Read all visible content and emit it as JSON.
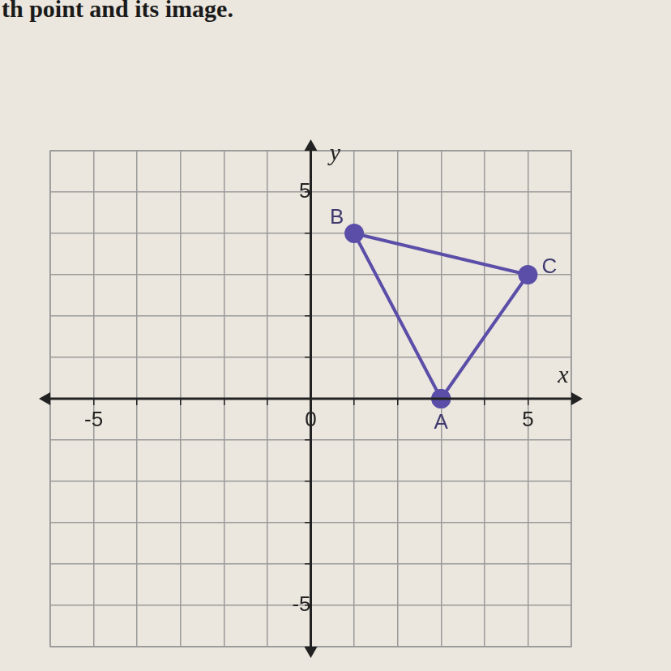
{
  "page_text": "th point and its image.",
  "chart_data": {
    "type": "scatter",
    "x_label": "x",
    "y_label": "y",
    "points": [
      {
        "label": "A",
        "x": 3,
        "y": 0
      },
      {
        "label": "B",
        "x": 1,
        "y": 4
      },
      {
        "label": "C",
        "x": 5,
        "y": 3
      }
    ],
    "color": "#5b4ea8",
    "marker": "circle",
    "line_style": "solid",
    "xlim": [
      -6,
      6
    ],
    "ylim": [
      -6,
      6
    ],
    "xticks": [
      -5,
      0,
      5
    ],
    "yticks": [
      -5,
      5
    ],
    "grid": true
  }
}
